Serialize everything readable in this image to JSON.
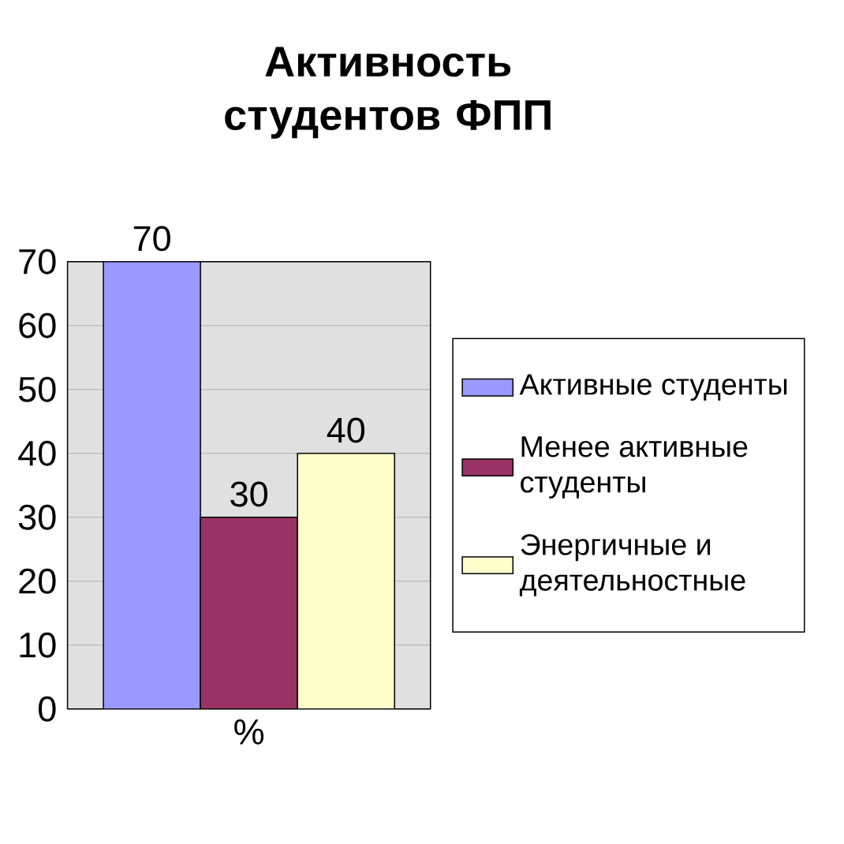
{
  "chart_data": {
    "type": "bar",
    "title": "Активность студентов ФПП",
    "categories": [
      "%"
    ],
    "series": [
      {
        "name": "Активные студенты",
        "color": "#9999ff",
        "values": [
          70
        ]
      },
      {
        "name": "Менее активные студенты",
        "color": "#993366",
        "values": [
          30
        ]
      },
      {
        "name": "Энергичные и деятельностные",
        "color": "#ffffcc",
        "values": [
          40
        ]
      }
    ],
    "ylim": [
      0,
      70
    ],
    "yticks": [
      0,
      10,
      20,
      30,
      40,
      50,
      60,
      70
    ],
    "grid": "y",
    "legend": "right",
    "data_labels": true
  }
}
